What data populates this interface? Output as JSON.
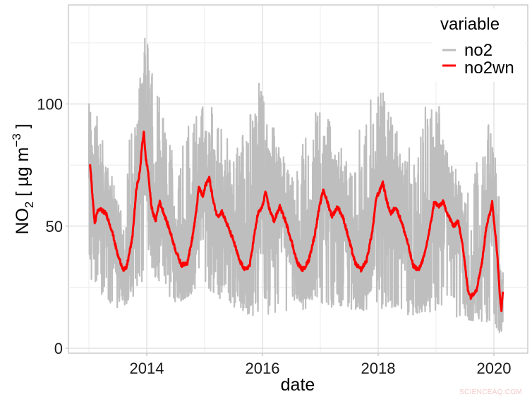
{
  "chart_data": {
    "type": "line",
    "title": "",
    "xlabel": "date",
    "ylabel": "NO2 [ µg m^-3 ]",
    "ylabel_parts": {
      "main": "NO",
      "sub": "2",
      "unit_open": " [ µg m",
      "sup": "−3",
      "unit_close": " ]"
    },
    "x_range": [
      2012.8,
      2020.55
    ],
    "ylim": [
      -2,
      140
    ],
    "x_ticks": [
      2014,
      2016,
      2018,
      2020
    ],
    "x_tick_labels": [
      "2014",
      "2016",
      "2018",
      "2020"
    ],
    "x_minor_ticks": [
      2013,
      2015,
      2017,
      2019
    ],
    "y_ticks": [
      0,
      50,
      100
    ],
    "y_tick_labels": [
      "0",
      "50",
      "100"
    ],
    "y_minor_ticks": [
      25,
      75,
      125
    ],
    "grid": true,
    "legend": {
      "title": "variable",
      "position": "top-right-inside",
      "entries": [
        {
          "name": "no2",
          "color": "#bebebe"
        },
        {
          "name": "no2wn",
          "color": "#ff0000"
        }
      ]
    },
    "series": [
      {
        "name": "no2wn",
        "color": "#ff0000",
        "description": "weather-normalised NO2 (smoothed), approximate values read from the plot",
        "x": [
          2013.02,
          2013.05,
          2013.1,
          2013.15,
          2013.2,
          2013.3,
          2013.4,
          2013.5,
          2013.6,
          2013.65,
          2013.75,
          2013.82,
          2013.88,
          2013.92,
          2013.95,
          2013.98,
          2014.02,
          2014.08,
          2014.15,
          2014.22,
          2014.3,
          2014.4,
          2014.5,
          2014.6,
          2014.7,
          2014.78,
          2014.85,
          2014.9,
          2014.97,
          2015.02,
          2015.08,
          2015.15,
          2015.22,
          2015.3,
          2015.4,
          2015.5,
          2015.6,
          2015.7,
          2015.78,
          2015.85,
          2015.92,
          2016.0,
          2016.05,
          2016.12,
          2016.2,
          2016.3,
          2016.4,
          2016.5,
          2016.6,
          2016.7,
          2016.8,
          2016.9,
          2016.97,
          2017.05,
          2017.12,
          2017.2,
          2017.3,
          2017.4,
          2017.5,
          2017.6,
          2017.7,
          2017.8,
          2017.9,
          2017.97,
          2018.02,
          2018.08,
          2018.15,
          2018.22,
          2018.3,
          2018.4,
          2018.5,
          2018.6,
          2018.7,
          2018.8,
          2018.9,
          2018.97,
          2019.05,
          2019.12,
          2019.2,
          2019.3,
          2019.38,
          2019.45,
          2019.5,
          2019.55,
          2019.6,
          2019.7,
          2019.8,
          2019.87,
          2019.93,
          2019.97,
          2020.02,
          2020.06,
          2020.1,
          2020.13,
          2020.16
        ],
        "y": [
          76,
          66,
          51,
          56,
          57,
          55,
          48,
          38,
          32,
          33,
          45,
          65,
          72,
          83,
          89,
          78,
          73,
          58,
          52,
          60,
          55,
          48,
          40,
          34,
          35,
          44,
          55,
          66,
          62,
          67,
          70,
          60,
          54,
          56,
          50,
          44,
          36,
          32,
          34,
          45,
          55,
          58,
          64,
          57,
          52,
          58,
          52,
          44,
          35,
          32,
          36,
          46,
          56,
          65,
          60,
          54,
          58,
          53,
          44,
          35,
          32,
          36,
          48,
          62,
          64,
          68,
          60,
          55,
          58,
          52,
          44,
          34,
          32,
          38,
          50,
          60,
          58,
          60,
          55,
          50,
          52,
          44,
          34,
          24,
          21,
          24,
          36,
          50,
          55,
          60,
          48,
          38,
          22,
          16,
          24
        ]
      },
      {
        "name": "no2",
        "color": "#bebebe",
        "description": "daily NO2 observations (noisy), approximate envelope read from the plot",
        "x": [
          2013.0,
          2013.1,
          2013.5,
          2013.9,
          2013.95,
          2014.5,
          2014.95,
          2015.5,
          2015.95,
          2016.5,
          2016.95,
          2017.5,
          2017.95,
          2018.5,
          2018.95,
          2019.5,
          2019.95,
          2020.1,
          2020.16
        ],
        "y_min": [
          25,
          23,
          16,
          22,
          35,
          18,
          25,
          15,
          12,
          15,
          17,
          15,
          16,
          13,
          15,
          12,
          10,
          5,
          8
        ],
        "y_max": [
          105,
          100,
          60,
          120,
          133,
          75,
          110,
          80,
          110,
          70,
          105,
          75,
          113,
          80,
          110,
          60,
          95,
          60,
          40
        ]
      }
    ]
  },
  "watermark": "SCIENCEAQ.COM"
}
